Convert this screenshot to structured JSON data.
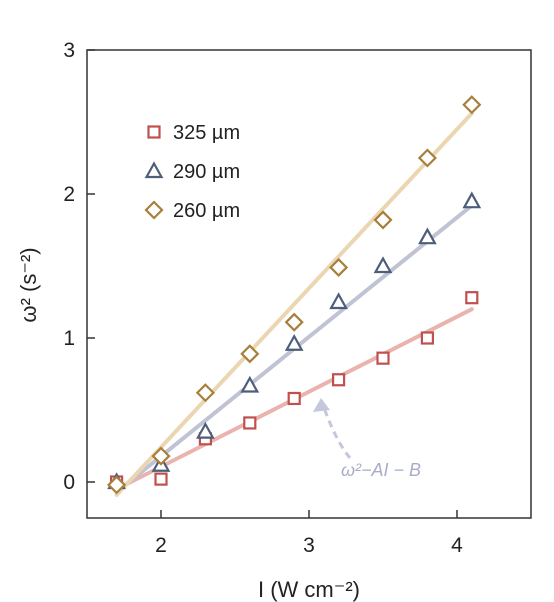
{
  "chart_data": {
    "type": "scatter",
    "xlabel": "I (W cm⁻²)",
    "ylabel": "ω² (s⁻²)",
    "xlim": [
      1.5,
      4.5
    ],
    "ylim": [
      -0.25,
      3.0
    ],
    "xticks": [
      2,
      3,
      4
    ],
    "yticks": [
      0,
      1,
      2,
      3
    ],
    "legend_position": "top-left",
    "annotation": "ω²−AI − B",
    "series": [
      {
        "name": "325 µm",
        "marker": "square",
        "color": "#c0504d",
        "line_color": "#eab3ae",
        "x": [
          1.7,
          2.0,
          2.3,
          2.6,
          2.9,
          3.2,
          3.5,
          3.8,
          4.1
        ],
        "y": [
          0.0,
          0.02,
          0.3,
          0.41,
          0.58,
          0.71,
          0.86,
          1.0,
          1.28
        ],
        "fit": {
          "x": [
            1.7,
            4.1
          ],
          "y": [
            -0.05,
            1.2
          ]
        }
      },
      {
        "name": "290 µm",
        "marker": "triangle",
        "color": "#4d5e7a",
        "line_color": "#bfc3d3",
        "x": [
          1.7,
          2.0,
          2.3,
          2.6,
          2.9,
          3.2,
          3.5,
          3.8,
          4.1
        ],
        "y": [
          0.0,
          0.12,
          0.35,
          0.67,
          0.96,
          1.25,
          1.5,
          1.7,
          1.95
        ],
        "fit": {
          "x": [
            1.7,
            4.1
          ],
          "y": [
            -0.07,
            1.92
          ]
        }
      },
      {
        "name": "260 µm",
        "marker": "diamond",
        "color": "#a87f3a",
        "line_color": "#ead7b2",
        "x": [
          1.7,
          2.0,
          2.3,
          2.6,
          2.9,
          3.2,
          3.5,
          3.8,
          4.1
        ],
        "y": [
          -0.02,
          0.18,
          0.62,
          0.89,
          1.11,
          1.49,
          1.82,
          2.25,
          2.62
        ],
        "fit": {
          "x": [
            1.7,
            4.1
          ],
          "y": [
            -0.09,
            2.56
          ]
        }
      }
    ]
  }
}
